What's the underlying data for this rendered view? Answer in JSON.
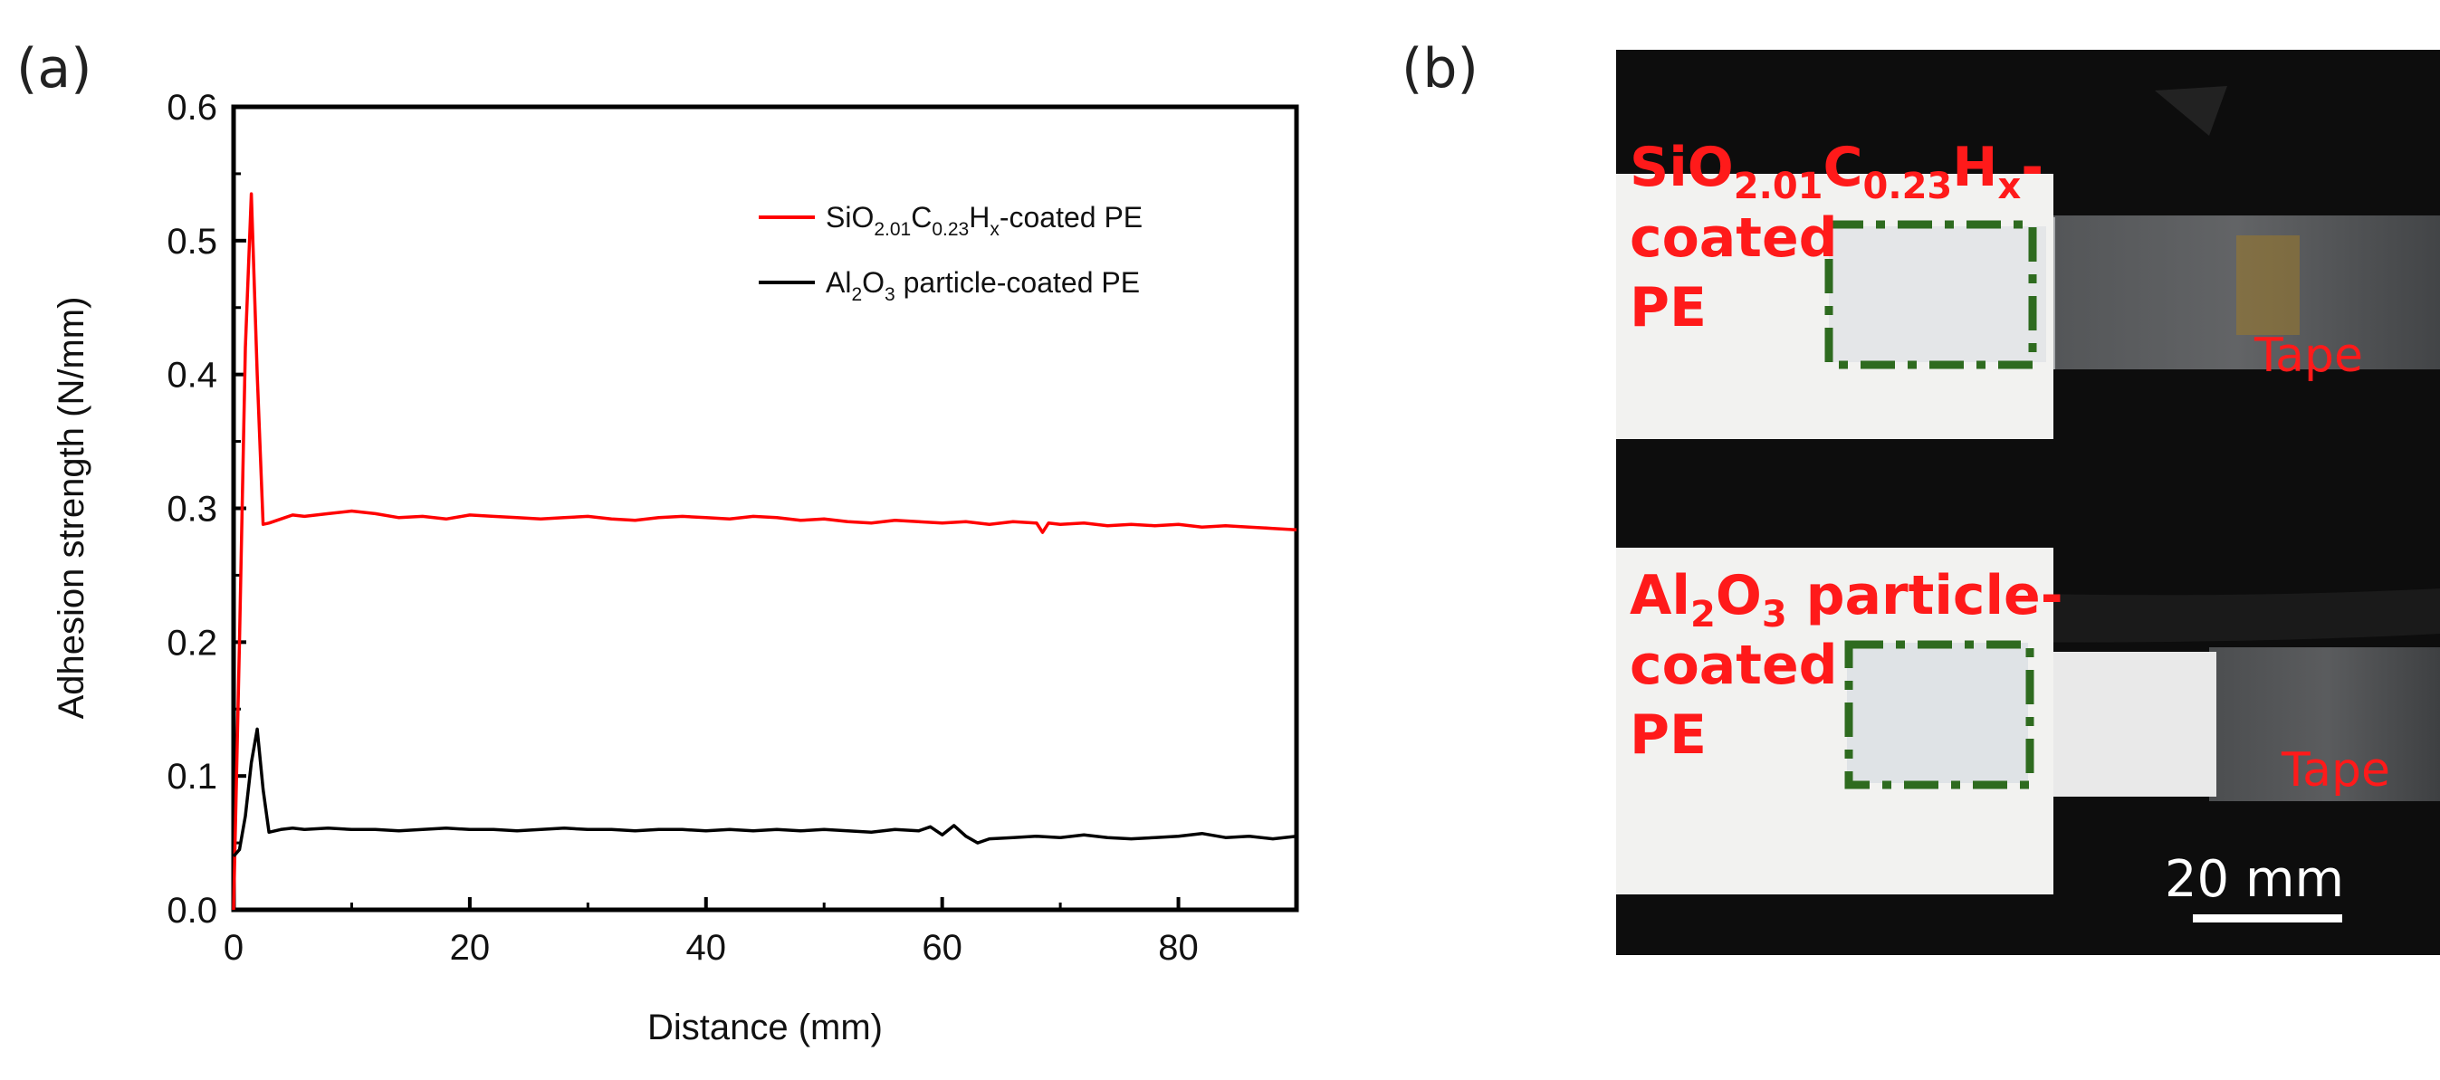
{
  "panels": {
    "a_label": "(a)",
    "b_label": "(b)"
  },
  "chart_data": {
    "type": "line",
    "title": "",
    "xlabel": "Distance (mm)",
    "ylabel": "Adhesion strength (N/mm)",
    "xlim": [
      0,
      90
    ],
    "ylim": [
      0,
      0.6
    ],
    "xticks": [
      0,
      20,
      40,
      60,
      80
    ],
    "xtick_labels": [
      "0",
      "20",
      "40",
      "60",
      "80"
    ],
    "yticks": [
      0.0,
      0.1,
      0.2,
      0.3,
      0.4,
      0.5,
      0.6
    ],
    "ytick_labels": [
      "0.0",
      "0.1",
      "0.2",
      "0.3",
      "0.4",
      "0.5",
      "0.6"
    ],
    "grid": false,
    "legend_position": "top-right",
    "series": [
      {
        "name": "SiO2.01C0.23Hx-coated PE",
        "legend": {
          "base": "SiO",
          "sub1": "2.01",
          "mid": "C",
          "sub2": "0.23",
          "mid2": "H",
          "sub3": "x",
          "tail": "-coated PE"
        },
        "color": "#ff0000",
        "x": [
          0,
          0.5,
          1.0,
          1.5,
          2.0,
          2.5,
          3,
          4,
          5,
          6,
          8,
          10,
          12,
          14,
          16,
          18,
          20,
          22,
          24,
          26,
          28,
          30,
          32,
          34,
          36,
          38,
          40,
          42,
          44,
          46,
          48,
          50,
          52,
          54,
          56,
          58,
          60,
          62,
          64,
          66,
          68,
          68.5,
          69,
          70,
          72,
          74,
          76,
          78,
          80,
          82,
          84,
          86,
          88,
          90
        ],
        "y": [
          0.0,
          0.2,
          0.42,
          0.535,
          0.4,
          0.288,
          0.289,
          0.292,
          0.295,
          0.294,
          0.296,
          0.298,
          0.296,
          0.293,
          0.294,
          0.292,
          0.295,
          0.294,
          0.293,
          0.292,
          0.293,
          0.294,
          0.292,
          0.291,
          0.293,
          0.294,
          0.293,
          0.292,
          0.294,
          0.293,
          0.291,
          0.292,
          0.29,
          0.289,
          0.291,
          0.29,
          0.289,
          0.29,
          0.288,
          0.29,
          0.289,
          0.282,
          0.289,
          0.288,
          0.289,
          0.287,
          0.288,
          0.287,
          0.288,
          0.286,
          0.287,
          0.286,
          0.285,
          0.284
        ]
      },
      {
        "name": "Al2O3 particle-coated PE",
        "legend": {
          "base": "Al",
          "sub1": "2",
          "mid": "O",
          "sub2": "3",
          "tail": " particle-coated PE"
        },
        "color": "#000000",
        "x": [
          0,
          0.5,
          1.0,
          1.5,
          2.0,
          2.5,
          3,
          4,
          5,
          6,
          8,
          10,
          12,
          14,
          16,
          18,
          20,
          22,
          24,
          26,
          28,
          30,
          32,
          34,
          36,
          38,
          40,
          42,
          44,
          46,
          48,
          50,
          52,
          54,
          56,
          58,
          59,
          60,
          61,
          62,
          63,
          64,
          66,
          68,
          70,
          72,
          74,
          76,
          78,
          80,
          82,
          84,
          86,
          88,
          90
        ],
        "y": [
          0.04,
          0.045,
          0.07,
          0.11,
          0.135,
          0.09,
          0.058,
          0.06,
          0.061,
          0.06,
          0.061,
          0.06,
          0.06,
          0.059,
          0.06,
          0.061,
          0.06,
          0.06,
          0.059,
          0.06,
          0.061,
          0.06,
          0.06,
          0.059,
          0.06,
          0.06,
          0.059,
          0.06,
          0.059,
          0.06,
          0.059,
          0.06,
          0.059,
          0.058,
          0.06,
          0.059,
          0.062,
          0.056,
          0.063,
          0.055,
          0.05,
          0.053,
          0.054,
          0.055,
          0.054,
          0.056,
          0.054,
          0.053,
          0.054,
          0.055,
          0.057,
          0.054,
          0.055,
          0.053,
          0.055
        ]
      }
    ]
  },
  "photo": {
    "label_top": {
      "base": "SiO",
      "sub1": "2.01",
      "mid": "C",
      "sub2": "0.23",
      "mid2": "H",
      "sub3": "x",
      "tail": "-",
      "line2": "coated",
      "line3": "PE"
    },
    "label_bottom": {
      "base": "Al",
      "sub1": "2",
      "mid": "O",
      "sub2": "3",
      "tail": " particle-",
      "line2": "coated",
      "line3": "PE"
    },
    "tape_top": "Tape",
    "tape_bottom": "Tape",
    "scale_bar": "20 mm",
    "colors": {
      "background": "#0d0d0d",
      "label": "#ff1a1a",
      "box": "#2e6b1f",
      "scale": "#ffffff"
    }
  }
}
